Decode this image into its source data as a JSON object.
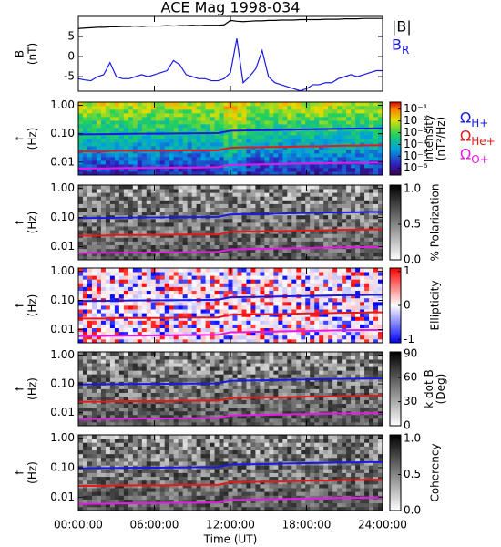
{
  "chart_data": {
    "type": "multi-panel",
    "title": "ACE Mag 1998-034",
    "xlabel": "Time (UT)",
    "xlim": [
      0,
      24
    ],
    "xticks": [
      {
        "value": 0,
        "label": "00:00:00"
      },
      {
        "value": 6,
        "label": "06:00:00"
      },
      {
        "value": 12,
        "label": "12:00:00"
      },
      {
        "value": 18,
        "label": "18:00:00"
      },
      {
        "value": 24,
        "label": "24:00:00"
      }
    ],
    "cyclotron": {
      "x": [
        0,
        1,
        2,
        3,
        4,
        5,
        6,
        7,
        8,
        9,
        10,
        11,
        12,
        13,
        14,
        15,
        16,
        17,
        18,
        19,
        20,
        21,
        22,
        23,
        24
      ],
      "series": [
        {
          "name": "Ω",
          "subscript": "H+",
          "color": "#1a1ae6",
          "values": [
            0.095,
            0.096,
            0.097,
            0.098,
            0.099,
            0.1,
            0.1,
            0.101,
            0.102,
            0.103,
            0.104,
            0.105,
            0.128,
            0.13,
            0.132,
            0.134,
            0.137,
            0.14,
            0.143,
            0.145,
            0.148,
            0.15,
            0.152,
            0.154,
            0.155
          ]
        },
        {
          "name": "Ω",
          "subscript": "He+",
          "color": "#e61a1a",
          "values": [
            0.024,
            0.024,
            0.024,
            0.025,
            0.025,
            0.025,
            0.025,
            0.025,
            0.026,
            0.026,
            0.026,
            0.026,
            0.032,
            0.033,
            0.033,
            0.034,
            0.034,
            0.035,
            0.036,
            0.036,
            0.037,
            0.038,
            0.038,
            0.039,
            0.039
          ]
        },
        {
          "name": "Ω",
          "subscript": "O+",
          "color": "#e61ae6",
          "values": [
            0.0059,
            0.006,
            0.006,
            0.0061,
            0.0062,
            0.0062,
            0.0063,
            0.0063,
            0.0064,
            0.0064,
            0.0065,
            0.0066,
            0.008,
            0.0081,
            0.0083,
            0.0084,
            0.0086,
            0.0088,
            0.0089,
            0.0091,
            0.0093,
            0.0094,
            0.0095,
            0.0096,
            0.0097
          ]
        }
      ]
    },
    "panels": [
      {
        "type": "line",
        "ylabel": [
          "B",
          "(nT)"
        ],
        "ylim": [
          -8.6,
          10
        ],
        "yticks": [
          5,
          0,
          -5
        ],
        "x": [
          0,
          0.5,
          1,
          1.5,
          2,
          2.5,
          3,
          3.5,
          4,
          4.5,
          5,
          5.5,
          6,
          6.5,
          7,
          7.5,
          8,
          8.5,
          9,
          9.5,
          10,
          10.5,
          11,
          11.5,
          12,
          12.5,
          13,
          13.5,
          14,
          14.5,
          15,
          15.5,
          16,
          16.5,
          17,
          17.5,
          18,
          18.5,
          19,
          19.5,
          20,
          20.5,
          21,
          21.5,
          22,
          22.5,
          23,
          23.5,
          24
        ],
        "series": [
          {
            "name": "|B|",
            "color": "#000000",
            "values": [
              7.0,
              7.1,
              7.2,
              7.3,
              7.3,
              7.4,
              7.4,
              7.5,
              7.5,
              7.6,
              7.5,
              7.6,
              7.6,
              7.6,
              7.7,
              7.6,
              7.7,
              7.7,
              7.8,
              7.7,
              7.8,
              7.8,
              7.8,
              7.9,
              9.0,
              8.8,
              8.7,
              8.8,
              8.9,
              8.9,
              9.0,
              9.0,
              9.1,
              9.1,
              9.1,
              9.2,
              9.2,
              9.2,
              9.2,
              9.3,
              9.3,
              9.3,
              9.4,
              9.4,
              9.4,
              9.5,
              9.5,
              9.5,
              9.5
            ]
          },
          {
            "name": "B",
            "subscript": "R",
            "color": "#1a1ae6",
            "values": [
              -5.5,
              -5.8,
              -6,
              -5,
              -4.5,
              -1.5,
              -5,
              -5.5,
              -5.5,
              -5,
              -4.5,
              -5,
              -4.5,
              -4,
              -3.5,
              -1,
              -2,
              -4.5,
              -5,
              -5.5,
              -5.5,
              -6,
              -6,
              -5.5,
              -4,
              4.5,
              -6.5,
              -5,
              -3,
              1.5,
              -5,
              -6.5,
              -7,
              -7.5,
              -8,
              -8.5,
              -8,
              -7,
              -7,
              -6.5,
              -6.5,
              -5.5,
              -5,
              -4.5,
              -5,
              -4.5,
              -4,
              -3.5,
              -3.5
            ]
          }
        ]
      },
      {
        "type": "spectrogram",
        "ylabel": [
          "f",
          "(Hz)"
        ],
        "log_y": true,
        "ylim": [
          0.0035,
          1.3
        ],
        "yticks": [
          {
            "value": 1,
            "label": "1.00"
          },
          {
            "value": 0.1,
            "label": "0.10"
          },
          {
            "value": 0.01,
            "label": "0.01"
          }
        ],
        "colormap": "rainbow",
        "clabel": [
          "Intensity",
          "(nT²/Hz)"
        ],
        "clim": [
          -6.6,
          -0.4
        ],
        "cticks": [
          {
            "value": -1,
            "label": "10⁻¹"
          },
          {
            "value": -2,
            "label": "10⁻²"
          },
          {
            "value": -3,
            "label": "10⁻³"
          },
          {
            "value": -4,
            "label": "10⁻⁴"
          },
          {
            "value": -5,
            "label": "10⁻⁵"
          },
          {
            "value": -6,
            "label": "10⁻⁶"
          }
        ],
        "legend": true
      },
      {
        "type": "spectrogram",
        "ylabel": [
          "f",
          "(Hz)"
        ],
        "log_y": true,
        "ylim": [
          0.0035,
          1.3
        ],
        "yticks": [
          {
            "value": 1,
            "label": "1.00"
          },
          {
            "value": 0.1,
            "label": "0.10"
          },
          {
            "value": 0.01,
            "label": "0.01"
          }
        ],
        "colormap": "gray",
        "clabel": [
          "% Polarization"
        ],
        "clim": [
          0,
          1.05
        ],
        "cticks": [
          {
            "value": 0,
            "label": "0.0"
          },
          {
            "value": 0.5,
            "label": "0.5"
          },
          {
            "value": 1,
            "label": "1.0"
          }
        ]
      },
      {
        "type": "spectrogram",
        "ylabel": [
          "f",
          "(Hz)"
        ],
        "log_y": true,
        "ylim": [
          0.0035,
          1.3
        ],
        "yticks": [
          {
            "value": 1,
            "label": "1.00"
          },
          {
            "value": 0.1,
            "label": "0.10"
          },
          {
            "value": 0.01,
            "label": "0.01"
          }
        ],
        "colormap": "bwr",
        "clabel": [
          "Ellipticity"
        ],
        "clim": [
          -1.1,
          1.1
        ],
        "cticks": [
          1,
          0,
          -1
        ]
      },
      {
        "type": "spectrogram",
        "ylabel": [
          "f",
          "(Hz)"
        ],
        "log_y": true,
        "ylim": [
          0.0035,
          1.3
        ],
        "yticks": [
          {
            "value": 1,
            "label": "1.00"
          },
          {
            "value": 0.1,
            "label": "0.10"
          },
          {
            "value": 0.01,
            "label": "0.01"
          }
        ],
        "colormap": "gray",
        "clabel": [
          "k dot B",
          "(Deg)"
        ],
        "clim": [
          0,
          92
        ],
        "cticks": [
          0,
          30,
          60,
          90
        ]
      },
      {
        "type": "spectrogram",
        "ylabel": [
          "f",
          "(Hz)"
        ],
        "log_y": true,
        "ylim": [
          0.0035,
          1.3
        ],
        "yticks": [
          {
            "value": 1,
            "label": "1.00"
          },
          {
            "value": 0.1,
            "label": "0.10"
          },
          {
            "value": 0.01,
            "label": "0.01"
          }
        ],
        "colormap": "gray",
        "clabel": [
          "Coherency"
        ],
        "clim": [
          0,
          1.05
        ],
        "cticks": [
          {
            "value": 0,
            "label": "0.0"
          },
          {
            "value": 0.5,
            "label": "0.5"
          },
          {
            "value": 1,
            "label": "1.0"
          }
        ]
      }
    ]
  }
}
